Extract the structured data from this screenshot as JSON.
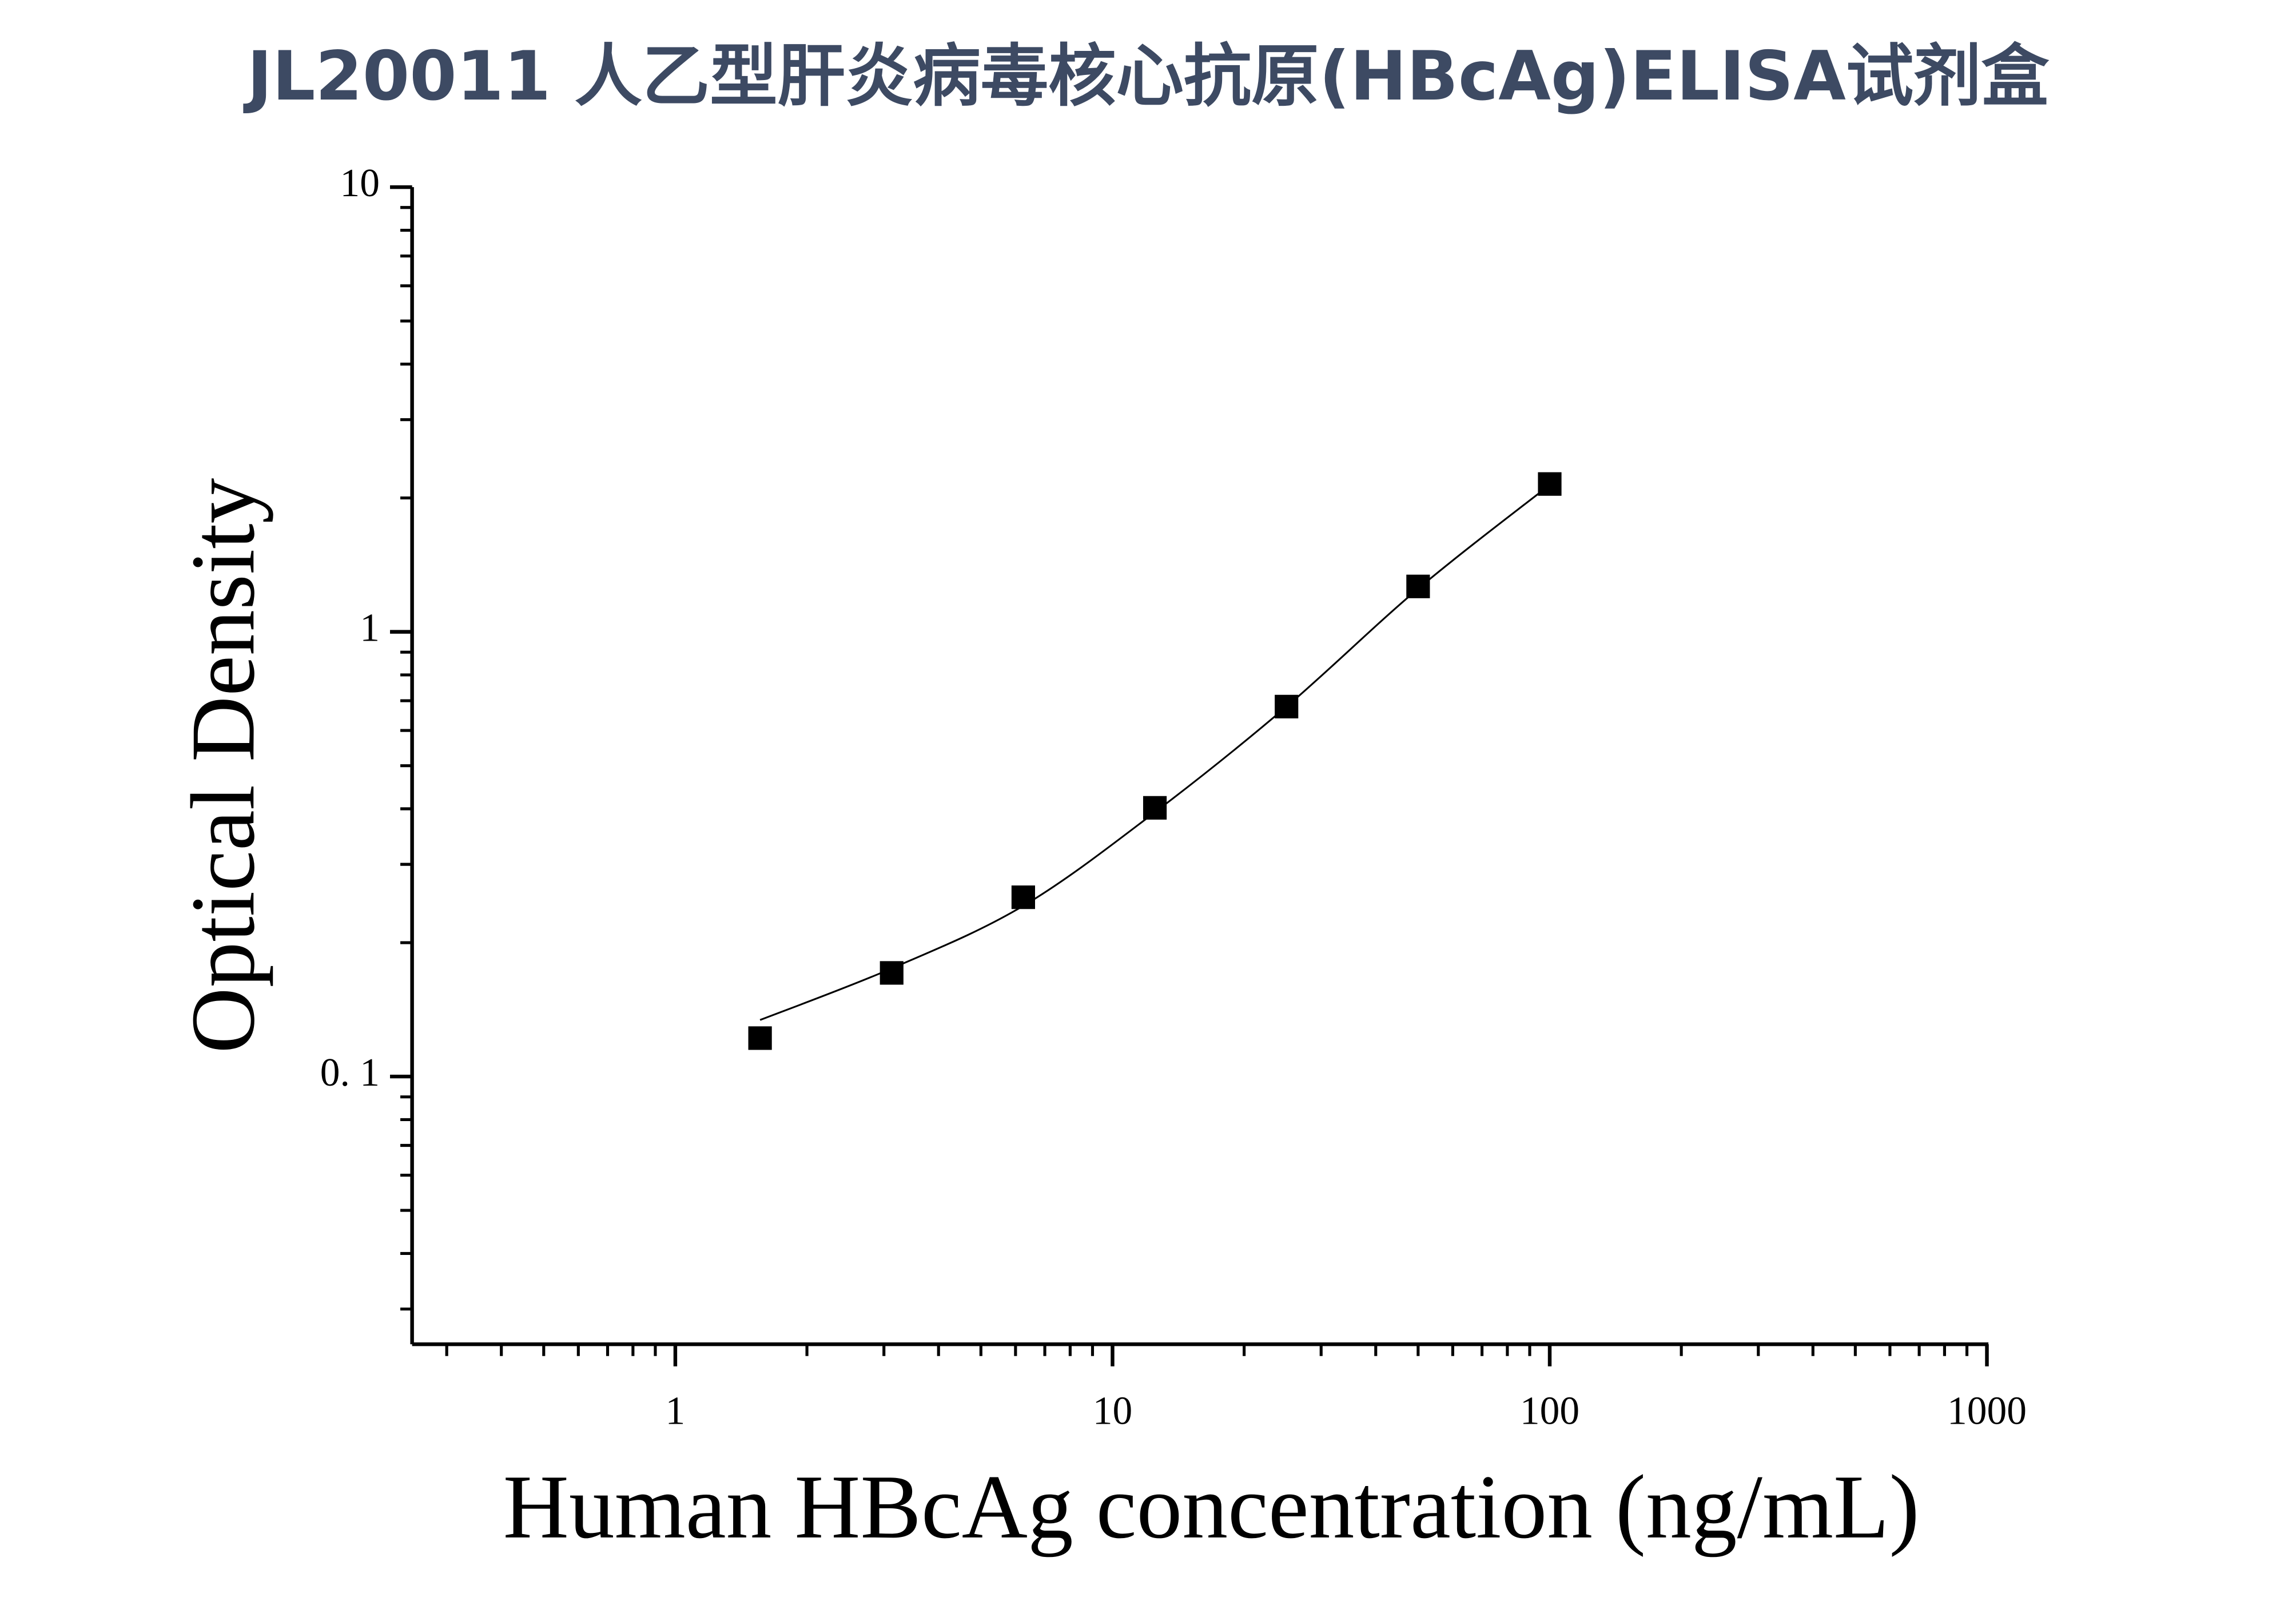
{
  "chart_data": {
    "type": "scatter",
    "title": "JL20011 人乙型肝炎病毒核心抗原(HBcAg)ELISA试剂盒",
    "x_label": "Human HBcAg concentration (ng/mL)",
    "y_label": "Optical Density",
    "log_x": true,
    "log_y": true,
    "xlim": [
      0.25,
      1000
    ],
    "ylim": [
      0.025,
      10
    ],
    "xticks": [
      1,
      10,
      100,
      1000
    ],
    "yticks": [
      {
        "value": 0.1,
        "label": "0. 1"
      },
      1,
      10
    ],
    "x_minor_ticks": [
      0.3,
      0.4,
      0.5,
      0.6,
      0.7,
      0.8,
      0.9,
      2,
      3,
      4,
      5,
      6,
      7,
      8,
      9,
      20,
      30,
      40,
      50,
      60,
      70,
      80,
      90,
      200,
      300,
      400,
      500,
      600,
      700,
      800,
      900
    ],
    "y_minor_ticks": [
      0.03,
      0.04,
      0.05,
      0.06,
      0.07,
      0.08,
      0.09,
      0.2,
      0.3,
      0.4,
      0.5,
      0.6,
      0.7,
      0.8,
      0.9,
      2,
      3,
      4,
      5,
      6,
      7,
      8,
      9
    ],
    "series": [
      {
        "marker": "square",
        "color": "#000000",
        "x": [
          1.5625,
          3.125,
          6.25,
          12.5,
          25,
          50,
          100
        ],
        "values": [
          0.122,
          0.171,
          0.253,
          0.402,
          0.679,
          1.265,
          2.15
        ]
      },
      {
        "marker": "line",
        "color": "#000000",
        "x": [
          1.5625,
          3.125,
          6.25,
          12.5,
          25,
          50,
          100
        ],
        "values": [
          0.134,
          0.175,
          0.242,
          0.393,
          0.679,
          1.25,
          2.14
        ]
      }
    ]
  }
}
